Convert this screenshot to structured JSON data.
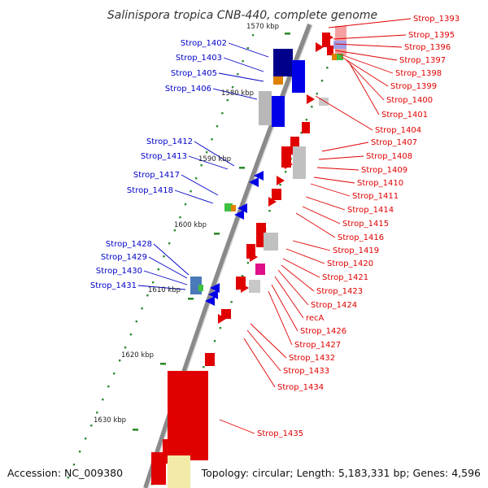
{
  "title": "Salinispora tropica CNB-440, complete genome",
  "accession": "Accession: NC_009380",
  "summary": "Topology: circular; Length: 5,183,331 bp; Genes: 4,596",
  "colors": {
    "backbone": "#8a8a8a",
    "forward_gene": "#e00000",
    "reverse_gene": "#0000e8",
    "tick": "#2e8b2e",
    "forward_label": "#e00000",
    "reverse_label": "#0000c8"
  },
  "scale_labels": [
    "1570 kbp",
    "1580 kbp",
    "1590 kbp",
    "1600 kbp",
    "1610 kbp",
    "1620 kbp",
    "1630 kbp"
  ],
  "forward_labels": [
    "Strop_1393",
    "Strop_1395",
    "Strop_1396",
    "Strop_1397",
    "Strop_1398",
    "Strop_1399",
    "Strop_1400",
    "Strop_1401",
    "Strop_1404",
    "Strop_1407",
    "Strop_1408",
    "Strop_1409",
    "Strop_1410",
    "Strop_1411",
    "Strop_1414",
    "Strop_1415",
    "Strop_1416",
    "Strop_1419",
    "Strop_1420",
    "Strop_1421",
    "Strop_1423",
    "Strop_1424",
    "recA",
    "Strop_1426",
    "Strop_1427",
    "Strop_1432",
    "Strop_1433",
    "Strop_1434",
    "Strop_1435"
  ],
  "reverse_labels": [
    "Strop_1402",
    "Strop_1403",
    "Strop_1405",
    "Strop_1406",
    "Strop_1412",
    "Strop_1413",
    "Strop_1417",
    "Strop_1418",
    "Strop_1428",
    "Strop_1429",
    "Strop_1430",
    "Strop_1431"
  ]
}
